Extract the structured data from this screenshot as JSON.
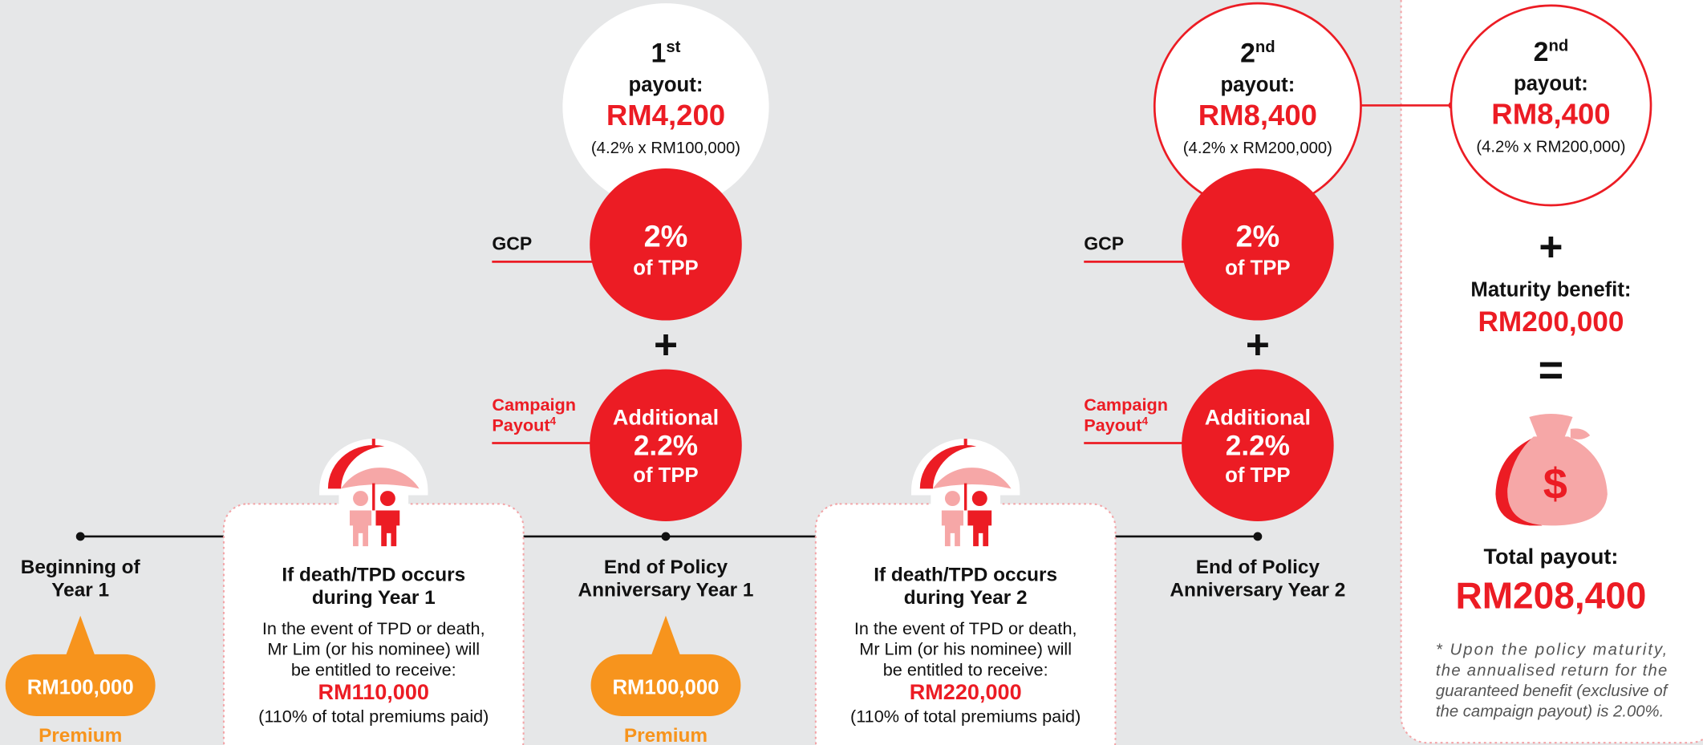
{
  "payouts": [
    {
      "ordinal": "1",
      "ordinal_suffix": "st",
      "label": "payout:",
      "amount": "RM4,200",
      "formula": "(4.2% x RM100,000)"
    },
    {
      "ordinal": "2",
      "ordinal_suffix": "nd",
      "label": "payout:",
      "amount": "RM8,400",
      "formula": "(4.2% x RM200,000)"
    },
    {
      "ordinal": "2",
      "ordinal_suffix": "nd",
      "label": "payout:",
      "amount": "RM8,400",
      "formula": "(4.2% x RM200,000)"
    }
  ],
  "gcp": [
    {
      "label": "GCP",
      "rate": "2%",
      "basis": "of TPP"
    },
    {
      "label": "GCP",
      "rate": "2%",
      "basis": "of TPP"
    }
  ],
  "plus_signs": [
    "+",
    "+"
  ],
  "campaign": [
    {
      "label_line1": "Campaign",
      "label_line2": "Payout",
      "footnote_mark": "4",
      "prefix": "Additional",
      "rate": "2.2%",
      "basis": "of TPP"
    },
    {
      "label_line1": "Campaign",
      "label_line2": "Payout",
      "footnote_mark": "4",
      "prefix": "Additional",
      "rate": "2.2%",
      "basis": "of TPP"
    }
  ],
  "milestones": [
    {
      "lines": [
        "Beginning of",
        "Year 1"
      ]
    },
    {
      "lines": [
        "End of Policy",
        "Anniversary Year 1"
      ]
    },
    {
      "lines": [
        "End of Policy",
        "Anniversary Year 2"
      ]
    }
  ],
  "premiums": [
    {
      "amount": "RM100,000",
      "label": "Premium"
    },
    {
      "amount": "RM100,000",
      "label": "Premium"
    }
  ],
  "death_cases": [
    {
      "title": [
        "If death/TPD occurs",
        "during Year 1"
      ],
      "body": [
        "In the event of TPD or death,",
        "Mr Lim (or his nominee) will",
        "be entitled to receive:"
      ],
      "amount": "RM110,000",
      "note": "(110% of total premiums paid)"
    },
    {
      "title": [
        "If death/TPD occurs",
        "during Year 2"
      ],
      "body": [
        "In the event of TPD or death,",
        "Mr Lim (or his nominee) will",
        "be entitled to receive:"
      ],
      "amount": "RM220,000",
      "note": "(110% of total premiums paid)"
    }
  ],
  "summary": {
    "plus": "+",
    "maturity_label": "Maturity benefit:",
    "maturity_amount": "RM200,000",
    "equals": "=",
    "currency_icon": "$",
    "total_label": "Total payout:",
    "total_amount": "RM208,400",
    "footnote": [
      "* Upon the policy maturity,",
      "the annualised return for the",
      "guaranteed benefit (exclusive of",
      "the campaign payout) is 2.00%."
    ]
  }
}
